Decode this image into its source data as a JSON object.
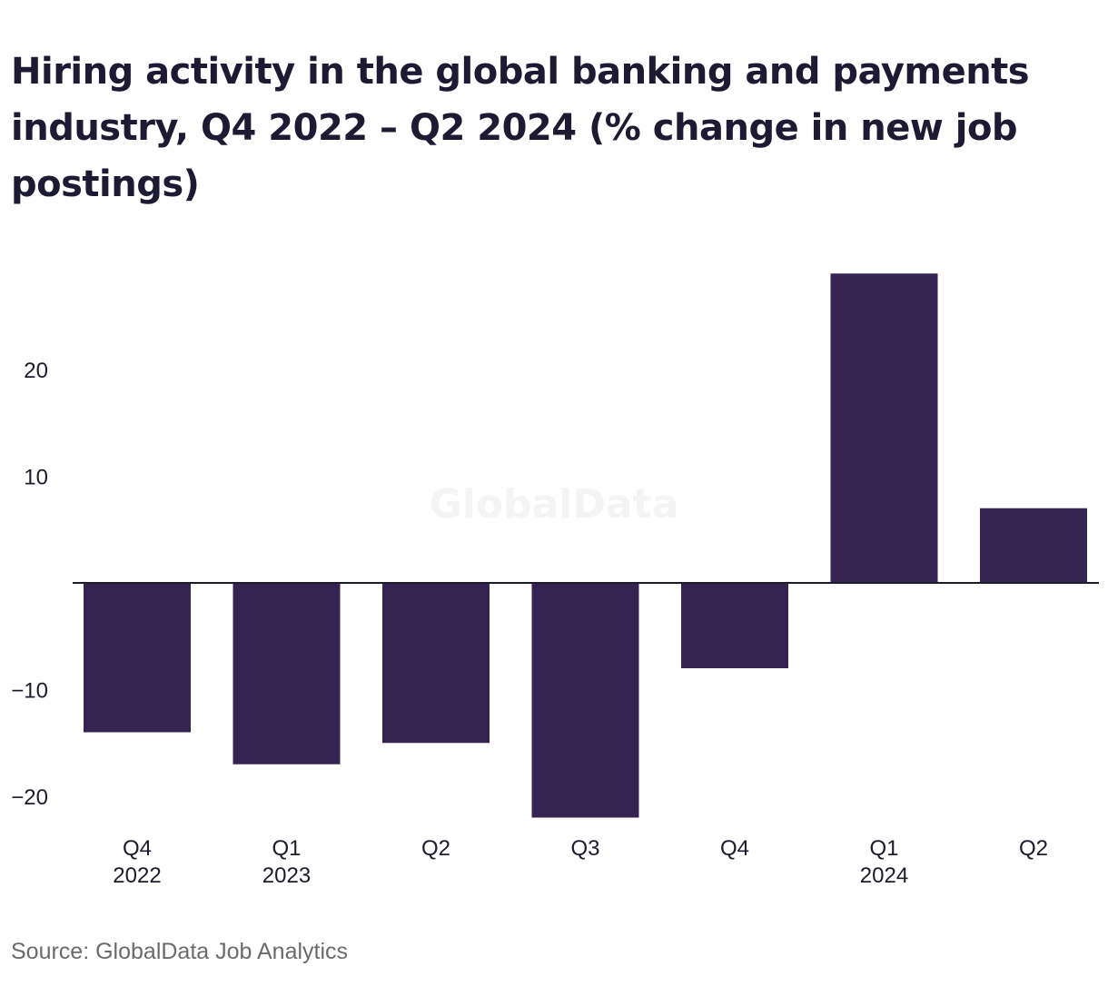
{
  "chart_data": {
    "type": "bar",
    "title": "Hiring activity in the global banking and payments industry, Q4 2022 – Q2 2024 (% change in new job postings)",
    "categories": [
      {
        "quarter": "Q4",
        "year": "2022"
      },
      {
        "quarter": "Q1",
        "year": "2023"
      },
      {
        "quarter": "Q2",
        "year": ""
      },
      {
        "quarter": "Q3",
        "year": ""
      },
      {
        "quarter": "Q4",
        "year": ""
      },
      {
        "quarter": "Q1",
        "year": "2024"
      },
      {
        "quarter": "Q2",
        "year": ""
      }
    ],
    "values": [
      -14,
      -17,
      -15,
      -22,
      -8,
      29,
      7
    ],
    "yticks": [
      20,
      10,
      -10,
      -20
    ],
    "ytick_labels": [
      "20",
      "10",
      "−10",
      "−20"
    ],
    "ylim": [
      -22,
      29
    ],
    "grid": false,
    "bar_color": "#352451",
    "zero_line_color": "#1c1c2e",
    "watermark": "GlobalData",
    "source": "Source: GlobalData Job Analytics"
  }
}
